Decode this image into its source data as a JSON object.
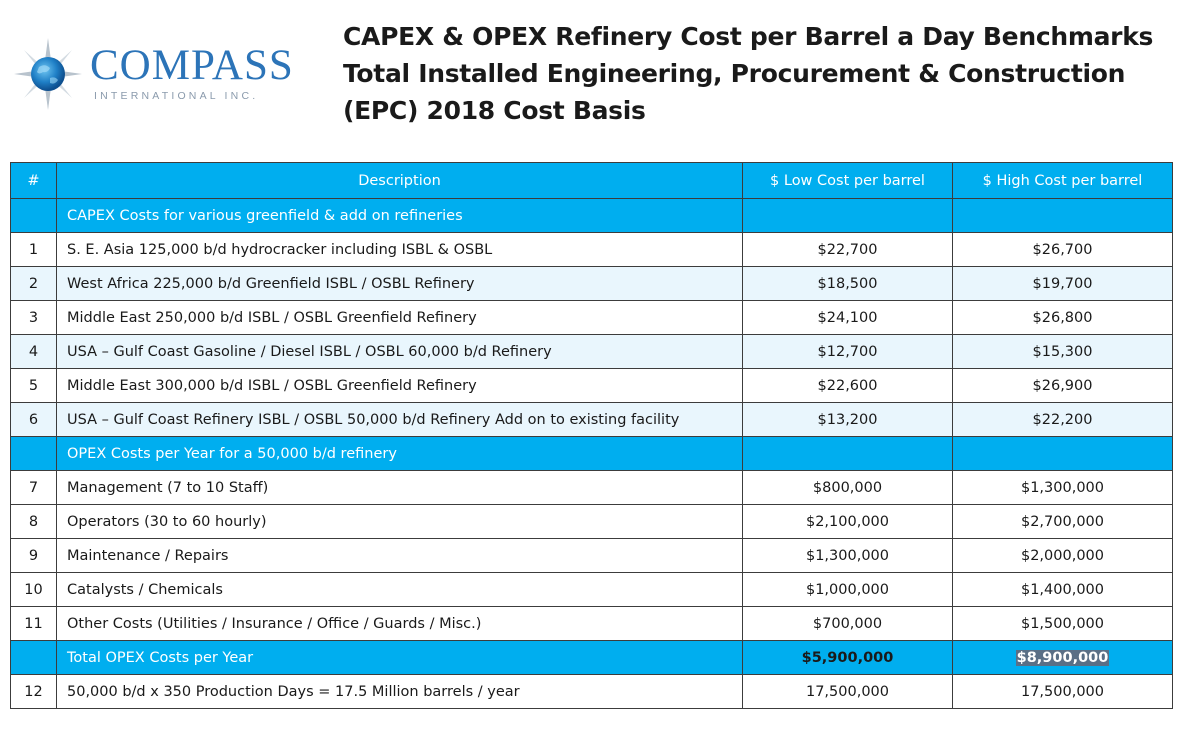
{
  "logo": {
    "brand": "COMPASS",
    "subtitle": "INTERNATIONAL INC.",
    "icon": "compass-rose-icon",
    "colors": {
      "primary": "#2c74b8",
      "subtitle": "#8a9aac"
    }
  },
  "title": {
    "line1": "CAPEX & OPEX Refinery Cost per Barrel a Day Benchmarks",
    "line2": "Total Installed Engineering, Procurement & Construction",
    "line3": "(EPC) 2018 Cost Basis"
  },
  "table": {
    "headers": {
      "num": "#",
      "description": "Description",
      "low": "$ Low Cost per barrel",
      "high": "$ High Cost per barrel"
    },
    "capex_section": "CAPEX Costs for various greenfield & add on refineries",
    "capex_rows": [
      {
        "num": "1",
        "description": "S. E. Asia 125,000 b/d hydrocracker including ISBL & OSBL",
        "low": "$22,700",
        "high": "$26,700"
      },
      {
        "num": "2",
        "description": "West Africa 225,000 b/d Greenfield  ISBL / OSBL Refinery",
        "low": "$18,500",
        "high": "$19,700"
      },
      {
        "num": "3",
        "description": "Middle East 250,000 b/d ISBL / OSBL Greenfield  Refinery",
        "low": "$24,100",
        "high": "$26,800"
      },
      {
        "num": "4",
        "description": "USA – Gulf Coast Gasoline / Diesel ISBL / OSBL 60,000 b/d  Refinery",
        "low": "$12,700",
        "high": "$15,300"
      },
      {
        "num": "5",
        "description": "Middle East 300,000 b/d ISBL / OSBL Greenfield Refinery",
        "low": "$22,600",
        "high": "$26,900"
      },
      {
        "num": "6",
        "description": "USA – Gulf Coast Refinery ISBL / OSBL 50,000 b/d  Refinery Add on to existing facility",
        "low": "$13,200",
        "high": "$22,200"
      }
    ],
    "opex_section": "OPEX Costs per Year for a 50,000 b/d refinery",
    "opex_rows": [
      {
        "num": "7",
        "description": "Management  (7 to 10 Staff)",
        "low": "$800,000",
        "high": "$1,300,000"
      },
      {
        "num": "8",
        "description": "Operators (30 to 60 hourly)",
        "low": "$2,100,000",
        "high": "$2,700,000"
      },
      {
        "num": "9",
        "description": "Maintenance / Repairs",
        "low": "$1,300,000",
        "high": "$2,000,000"
      },
      {
        "num": "10",
        "description": "Catalysts / Chemicals",
        "low": "$1,000,000",
        "high": "$1,400,000"
      },
      {
        "num": "11",
        "description": "Other Costs (Utilities / Insurance / Office / Guards / Misc.)",
        "low": "$700,000",
        "high": "$1,500,000"
      }
    ],
    "total": {
      "description": "Total OPEX Costs per Year",
      "low": "$5,900,000",
      "high": "$8,900,000"
    },
    "final_row": {
      "num": "12",
      "description": "50,000 b/d x 350 Production Days = 17.5 Million  barrels / year",
      "low": "17,500,000",
      "high": "17,500,000"
    }
  },
  "colors": {
    "header_blue": "#00aeef",
    "alt_row": "#e9f6fd",
    "highlight": "#5a6f86"
  }
}
